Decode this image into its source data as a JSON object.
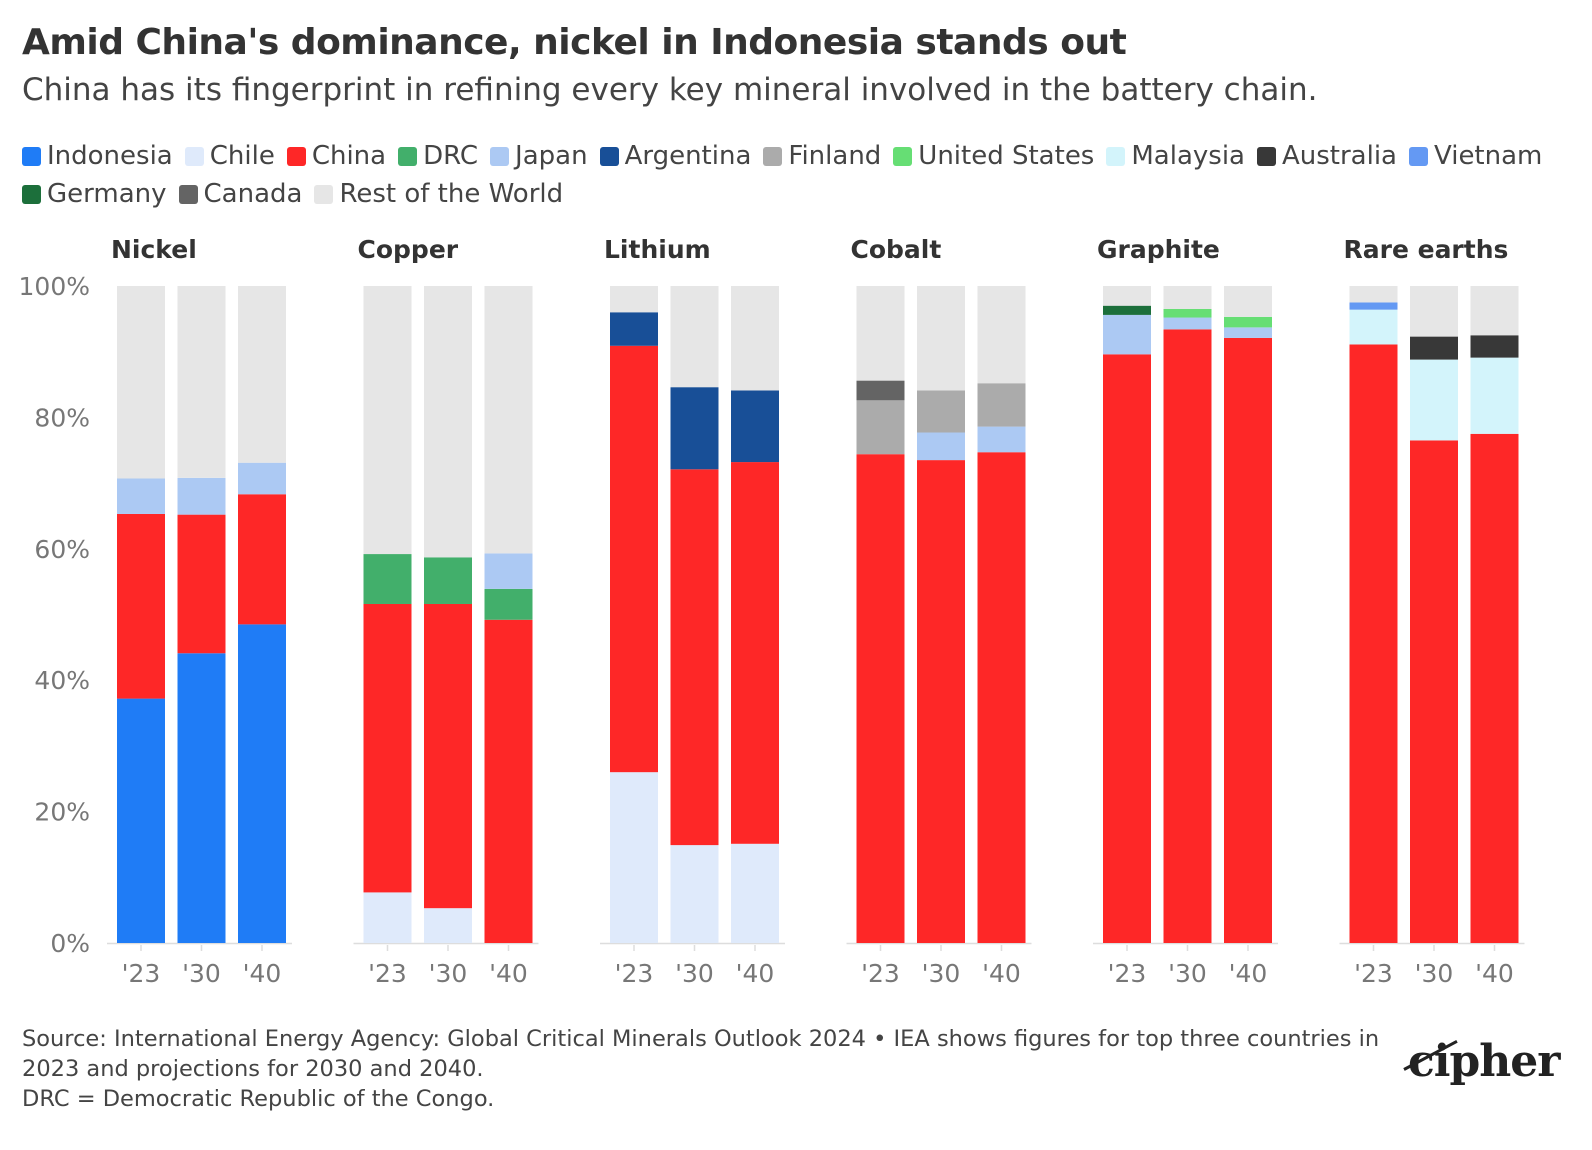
{
  "header": {
    "title": "Amid China's dominance, nickel in Indonesia stands out",
    "subtitle": "China has its fingerprint in refining every key mineral involved in the battery chain."
  },
  "legend": [
    {
      "name": "Indonesia",
      "color": "#1f7cf6"
    },
    {
      "name": "Chile",
      "color": "#dfeafb"
    },
    {
      "name": "China",
      "color": "#fe2727"
    },
    {
      "name": "DRC",
      "color": "#42af6b"
    },
    {
      "name": "Japan",
      "color": "#acc9f3"
    },
    {
      "name": "Argentina",
      "color": "#184f97"
    },
    {
      "name": "Finland",
      "color": "#ababab"
    },
    {
      "name": "United States",
      "color": "#66de74"
    },
    {
      "name": "Malaysia",
      "color": "#d3f4fb"
    },
    {
      "name": "Australia",
      "color": "#383838"
    },
    {
      "name": "Vietnam",
      "color": "#6499f3"
    },
    {
      "name": "Germany",
      "color": "#1c6f3b"
    },
    {
      "name": "Canada",
      "color": "#646464"
    },
    {
      "name": "Rest of the World",
      "color": "#e6e6e6"
    }
  ],
  "chart_data": {
    "type": "bar",
    "stacked": true,
    "ylim": [
      0,
      100
    ],
    "yticks": [
      "0%",
      "20%",
      "40%",
      "60%",
      "80%",
      "100%"
    ],
    "ytick_values": [
      0,
      20,
      40,
      60,
      80,
      100
    ],
    "categories": [
      "'23",
      "'30",
      "'40"
    ],
    "panels": [
      {
        "title": "Nickel",
        "bars": [
          {
            "category": "'23",
            "segments": [
              {
                "name": "Indonesia",
                "value": 37.2
              },
              {
                "name": "China",
                "value": 28.1
              },
              {
                "name": "Japan",
                "value": 5.4
              },
              {
                "name": "Rest of the World",
                "value": 29.3
              }
            ]
          },
          {
            "category": "'30",
            "segments": [
              {
                "name": "Indonesia",
                "value": 44.1
              },
              {
                "name": "China",
                "value": 21.1
              },
              {
                "name": "Japan",
                "value": 5.6
              },
              {
                "name": "Rest of the World",
                "value": 29.2
              }
            ]
          },
          {
            "category": "'40",
            "segments": [
              {
                "name": "Indonesia",
                "value": 48.5
              },
              {
                "name": "China",
                "value": 19.8
              },
              {
                "name": "Japan",
                "value": 4.8
              },
              {
                "name": "Rest of the World",
                "value": 26.9
              }
            ]
          }
        ]
      },
      {
        "title": "Copper",
        "bars": [
          {
            "category": "'23",
            "segments": [
              {
                "name": "Chile",
                "value": 7.7
              },
              {
                "name": "China",
                "value": 43.9
              },
              {
                "name": "DRC",
                "value": 7.6
              },
              {
                "name": "Rest of the World",
                "value": 40.8
              }
            ]
          },
          {
            "category": "'30",
            "segments": [
              {
                "name": "Chile",
                "value": 5.3
              },
              {
                "name": "China",
                "value": 46.3
              },
              {
                "name": "DRC",
                "value": 7.1
              },
              {
                "name": "Rest of the World",
                "value": 41.3
              }
            ]
          },
          {
            "category": "'40",
            "segments": [
              {
                "name": "China",
                "value": 49.2
              },
              {
                "name": "DRC",
                "value": 4.7
              },
              {
                "name": "Japan",
                "value": 5.4
              },
              {
                "name": "Rest of the World",
                "value": 40.7
              }
            ]
          }
        ]
      },
      {
        "title": "Lithium",
        "bars": [
          {
            "category": "'23",
            "segments": [
              {
                "name": "Chile",
                "value": 26.0
              },
              {
                "name": "China",
                "value": 64.9
              },
              {
                "name": "Argentina",
                "value": 5.1
              },
              {
                "name": "Rest of the World",
                "value": 4.0
              }
            ]
          },
          {
            "category": "'30",
            "segments": [
              {
                "name": "Chile",
                "value": 14.9
              },
              {
                "name": "China",
                "value": 57.2
              },
              {
                "name": "Argentina",
                "value": 12.5
              },
              {
                "name": "Rest of the World",
                "value": 15.4
              }
            ]
          },
          {
            "category": "'40",
            "segments": [
              {
                "name": "Chile",
                "value": 15.1
              },
              {
                "name": "China",
                "value": 58.1
              },
              {
                "name": "Argentina",
                "value": 10.9
              },
              {
                "name": "Rest of the World",
                "value": 15.9
              }
            ]
          }
        ]
      },
      {
        "title": "Cobalt",
        "bars": [
          {
            "category": "'23",
            "segments": [
              {
                "name": "China",
                "value": 74.4
              },
              {
                "name": "Finland",
                "value": 8.2
              },
              {
                "name": "Canada",
                "value": 3.0
              },
              {
                "name": "Rest of the World",
                "value": 14.4
              }
            ]
          },
          {
            "category": "'30",
            "segments": [
              {
                "name": "China",
                "value": 73.5
              },
              {
                "name": "Japan",
                "value": 4.2
              },
              {
                "name": "Finland",
                "value": 6.4
              },
              {
                "name": "Rest of the World",
                "value": 15.9
              }
            ]
          },
          {
            "category": "'40",
            "segments": [
              {
                "name": "China",
                "value": 74.7
              },
              {
                "name": "Japan",
                "value": 3.9
              },
              {
                "name": "Finland",
                "value": 6.6
              },
              {
                "name": "Rest of the World",
                "value": 14.8
              }
            ]
          }
        ]
      },
      {
        "title": "Graphite",
        "bars": [
          {
            "category": "'23",
            "segments": [
              {
                "name": "China",
                "value": 89.6
              },
              {
                "name": "Japan",
                "value": 6.0
              },
              {
                "name": "Germany",
                "value": 1.4
              },
              {
                "name": "Rest of the World",
                "value": 3.0
              }
            ]
          },
          {
            "category": "'30",
            "segments": [
              {
                "name": "China",
                "value": 93.4
              },
              {
                "name": "Japan",
                "value": 1.8
              },
              {
                "name": "United States",
                "value": 1.3
              },
              {
                "name": "Rest of the World",
                "value": 3.5
              }
            ]
          },
          {
            "category": "'40",
            "segments": [
              {
                "name": "China",
                "value": 92.1
              },
              {
                "name": "Japan",
                "value": 1.6
              },
              {
                "name": "United States",
                "value": 1.6
              },
              {
                "name": "Rest of the World",
                "value": 4.7
              }
            ]
          }
        ]
      },
      {
        "title": "Rare earths",
        "bars": [
          {
            "category": "'23",
            "segments": [
              {
                "name": "China",
                "value": 91.1
              },
              {
                "name": "Malaysia",
                "value": 5.3
              },
              {
                "name": "Vietnam",
                "value": 1.1
              },
              {
                "name": "Rest of the World",
                "value": 2.5
              }
            ]
          },
          {
            "category": "'30",
            "segments": [
              {
                "name": "China",
                "value": 76.5
              },
              {
                "name": "Malaysia",
                "value": 12.3
              },
              {
                "name": "Australia",
                "value": 3.5
              },
              {
                "name": "Rest of the World",
                "value": 7.7
              }
            ]
          },
          {
            "category": "'40",
            "segments": [
              {
                "name": "China",
                "value": 77.5
              },
              {
                "name": "Malaysia",
                "value": 11.6
              },
              {
                "name": "Australia",
                "value": 3.4
              },
              {
                "name": "Rest of the World",
                "value": 7.5
              }
            ]
          }
        ]
      }
    ]
  },
  "footer": {
    "source": "Source: International Energy Agency: Global Critical Minerals Outlook 2024 • IEA shows figures for top three countries in 2023 and projections for 2030 and 2040.",
    "note": "DRC = Democratic Republic of the Congo."
  },
  "logo": {
    "text": "cipher"
  }
}
